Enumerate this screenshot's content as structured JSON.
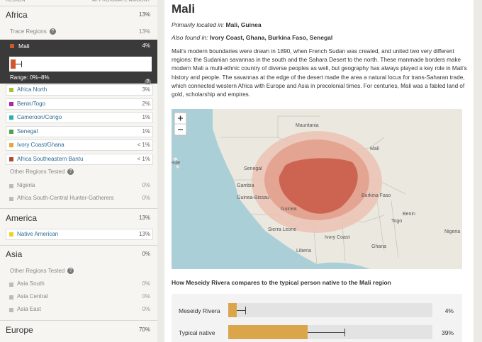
{
  "sidebar": {
    "header": [
      "REGION",
      "APPROXIMATE AMOUNT"
    ],
    "africa": {
      "name": "Africa",
      "amount": "13%",
      "trace_label": "Trace Regions",
      "trace_amount": "13%",
      "selected": {
        "name": "Mali",
        "amount": "4%",
        "range": "Range: 0%–8%"
      },
      "regions": [
        [
          "Africa North",
          "3%"
        ],
        [
          "Benin/Togo",
          "2%"
        ],
        [
          "Cameroon/Congo",
          "1%"
        ],
        [
          "Senegal",
          "1%"
        ],
        [
          "Ivory Coast/Ghana",
          "< 1%"
        ],
        [
          "Africa Southeastern Bantu",
          "< 1%"
        ]
      ],
      "other_label": "Other Regions Tested",
      "other": [
        [
          "Nigeria",
          "0%"
        ],
        [
          "Africa South-Central Hunter-Gatherers",
          "0%"
        ]
      ]
    },
    "america": {
      "name": "America",
      "amount": "13%",
      "regions": [
        [
          "Native American",
          "13%"
        ]
      ]
    },
    "asia": {
      "name": "Asia",
      "amount": "0%",
      "other_label": "Other Regions Tested",
      "other": [
        [
          "Asia South",
          "0%"
        ],
        [
          "Asia Central",
          "0%"
        ],
        [
          "Asia East",
          "0%"
        ]
      ]
    },
    "europe": {
      "name": "Europe",
      "amount": "70%"
    }
  },
  "detail": {
    "title": "Mali",
    "primary_label": "Primarily located in:",
    "primary": "Mali, Guinea",
    "also_label": "Also found in:",
    "also": "Ivory Coast, Ghana, Burkina Faso, Senegal",
    "paragraph": "Mali’s modern boundaries were drawn in 1890, when French Sudan was created, and united two very different regions: the Sudanian savannas in the south and the Sahara Desert to the north. These manmade borders make modern Mali a multi-ethnic country of diverse peoples as well, but geography has always played a key role in Mali’s history and people. The savannas at the edge of the desert made the area a natural locus for trans-Saharan trade, which connected western Africa with Europe and Asia in precolonial times. For centuries, Mali was a fabled land of gold, scholarship and empires.",
    "map_labels": [
      "Mauritania",
      "Mali",
      "Senegal",
      "Gambia",
      "Guinea-Bissau",
      "Guinea",
      "Burkina Faso",
      "Benin",
      "Togo",
      "Nigeria",
      "Sierra Leone",
      "Ivory Coast",
      "Ghana",
      "Liberia",
      "erde"
    ],
    "compare_title": "How Meseidy Rivera compares to the typical person native to the Mali region",
    "compare": [
      {
        "name": "Meseidy Rivera",
        "amount": "4%"
      },
      {
        "name": "Typical native",
        "amount": "39%"
      }
    ]
  }
}
